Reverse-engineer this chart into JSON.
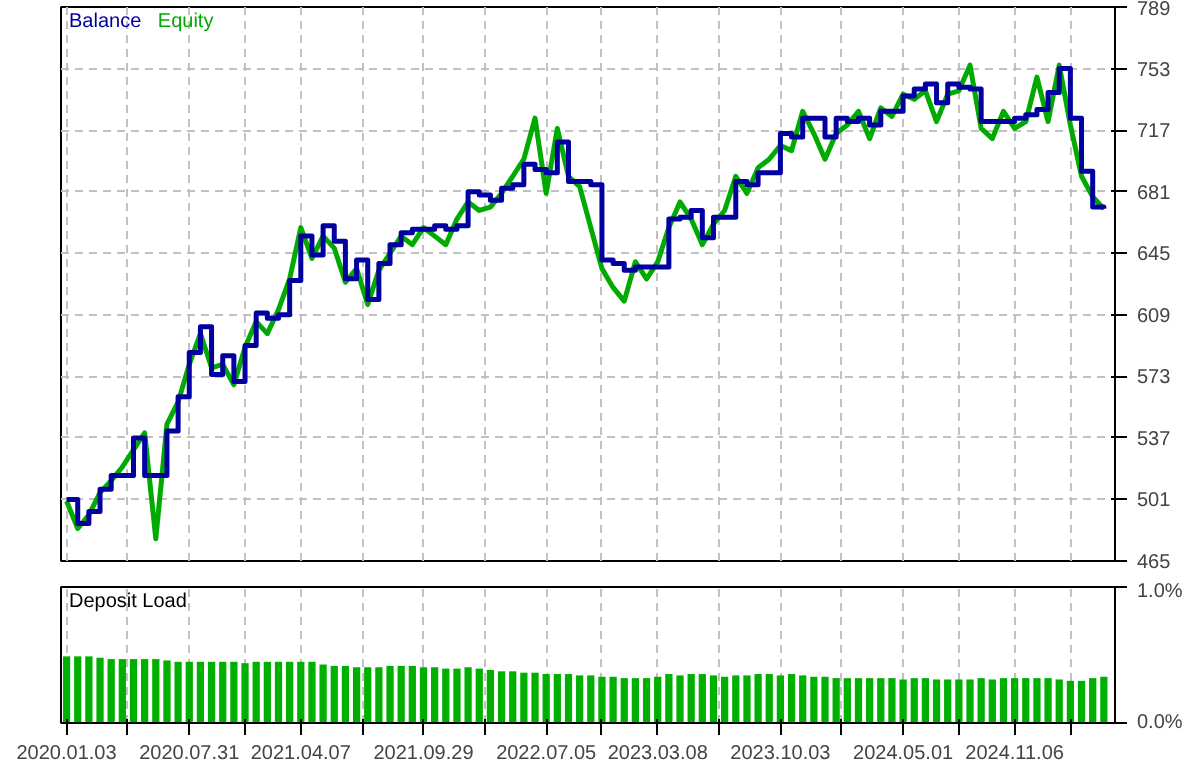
{
  "chart_data": [
    {
      "type": "line",
      "grid": true,
      "legend": "top left",
      "tick_labels": "y",
      "ylim": [
        465,
        789
      ],
      "yticks": [
        465,
        501,
        537,
        573,
        609,
        645,
        681,
        717,
        753,
        789
      ],
      "categories": [
        "2020.01.03",
        null,
        null,
        null,
        null,
        null,
        null,
        null,
        null,
        null,
        null,
        "2020.07.31",
        null,
        null,
        null,
        null,
        null,
        null,
        null,
        null,
        null,
        "2021.04.07",
        null,
        null,
        null,
        null,
        null,
        null,
        null,
        null,
        null,
        null,
        "2021.09.29",
        null,
        null,
        null,
        null,
        null,
        null,
        null,
        null,
        null,
        null,
        "2022.07.05",
        null,
        null,
        null,
        null,
        null,
        null,
        null,
        null,
        null,
        "2023.03.08",
        null,
        null,
        null,
        null,
        null,
        null,
        null,
        null,
        null,
        null,
        "2023.10.03",
        null,
        null,
        null,
        null,
        null,
        null,
        null,
        null,
        null,
        null,
        "2024.05.01",
        null,
        null,
        null,
        null,
        null,
        null,
        null,
        null,
        null,
        "2024.11.06",
        null,
        null,
        null,
        null,
        null,
        null,
        null,
        null
      ],
      "series": [
        {
          "name": "Equity",
          "type": "line",
          "color": "#00aa00",
          "values": [
            500,
            484,
            492,
            505,
            512,
            520,
            530,
            540,
            478,
            545,
            558,
            580,
            598,
            578,
            580,
            568,
            590,
            605,
            598,
            612,
            630,
            660,
            642,
            655,
            648,
            628,
            636,
            615,
            635,
            645,
            655,
            650,
            660,
            655,
            650,
            665,
            675,
            670,
            672,
            680,
            690,
            700,
            724,
            680,
            718,
            690,
            684,
            660,
            636,
            625,
            617,
            640,
            630,
            640,
            660,
            675,
            665,
            650,
            662,
            670,
            690,
            680,
            695,
            700,
            708,
            705,
            728,
            715,
            700,
            715,
            720,
            728,
            712,
            730,
            725,
            738,
            735,
            740,
            722,
            738,
            740,
            755,
            718,
            712,
            728,
            718,
            722,
            748,
            722,
            755,
            720,
            690,
            678,
            671
          ]
        },
        {
          "name": "Balance",
          "type": "step",
          "color": "#0000a0",
          "values": [
            501,
            487,
            494,
            507,
            515,
            515,
            537,
            515,
            515,
            541,
            561,
            587,
            602,
            574,
            585,
            570,
            591,
            610,
            607,
            609,
            629,
            655,
            644,
            661,
            652,
            630,
            641,
            618,
            639,
            650,
            657,
            659,
            659,
            661,
            659,
            661,
            681,
            679,
            676,
            683,
            685,
            697,
            694,
            692,
            710,
            687,
            687,
            685,
            641,
            639,
            635,
            637,
            637,
            637,
            665,
            666,
            670,
            654,
            666,
            666,
            687,
            685,
            692,
            692,
            715,
            713,
            724,
            724,
            713,
            724,
            722,
            724,
            720,
            728,
            728,
            737,
            741,
            744,
            733,
            744,
            742,
            741,
            722,
            722,
            722,
            724,
            726,
            729,
            739,
            753,
            724,
            693,
            672,
            671
          ]
        }
      ]
    },
    {
      "type": "bar",
      "title": "Deposit Load",
      "grid": true,
      "ylim": [
        0,
        1
      ],
      "yticks": [
        {
          "value": 0,
          "label": "0.0%"
        },
        {
          "value": 1,
          "label": "1.0%"
        }
      ],
      "categories": [
        "2020.01.03",
        null,
        null,
        null,
        null,
        null,
        null,
        null,
        null,
        null,
        null,
        "2020.07.31",
        null,
        null,
        null,
        null,
        null,
        null,
        null,
        null,
        null,
        "2021.04.07",
        null,
        null,
        null,
        null,
        null,
        null,
        null,
        null,
        null,
        null,
        "2021.09.29",
        null,
        null,
        null,
        null,
        null,
        null,
        null,
        null,
        null,
        null,
        "2022.07.05",
        null,
        null,
        null,
        null,
        null,
        null,
        null,
        null,
        null,
        "2023.03.08",
        null,
        null,
        null,
        null,
        null,
        null,
        null,
        null,
        null,
        null,
        "2023.10.03",
        null,
        null,
        null,
        null,
        null,
        null,
        null,
        null,
        null,
        null,
        "2024.05.01",
        null,
        null,
        null,
        null,
        null,
        null,
        null,
        null,
        null,
        "2024.11.06",
        null,
        null,
        null,
        null,
        null,
        null,
        null,
        null
      ],
      "color": "#00b000",
      "values": [
        0.49,
        0.49,
        0.49,
        0.48,
        0.47,
        0.47,
        0.47,
        0.47,
        0.47,
        0.46,
        0.45,
        0.45,
        0.45,
        0.45,
        0.45,
        0.45,
        0.44,
        0.45,
        0.45,
        0.45,
        0.45,
        0.45,
        0.45,
        0.43,
        0.42,
        0.42,
        0.41,
        0.41,
        0.41,
        0.42,
        0.42,
        0.42,
        0.41,
        0.41,
        0.4,
        0.4,
        0.41,
        0.4,
        0.39,
        0.38,
        0.38,
        0.37,
        0.37,
        0.36,
        0.36,
        0.36,
        0.35,
        0.35,
        0.34,
        0.34,
        0.33,
        0.33,
        0.33,
        0.34,
        0.36,
        0.35,
        0.36,
        0.36,
        0.35,
        0.34,
        0.35,
        0.35,
        0.36,
        0.36,
        0.35,
        0.36,
        0.35,
        0.34,
        0.34,
        0.33,
        0.33,
        0.33,
        0.33,
        0.33,
        0.33,
        0.32,
        0.33,
        0.33,
        0.32,
        0.32,
        0.32,
        0.32,
        0.33,
        0.32,
        0.33,
        0.33,
        0.33,
        0.33,
        0.33,
        0.32,
        0.31,
        0.31,
        0.33,
        0.34
      ]
    }
  ]
}
